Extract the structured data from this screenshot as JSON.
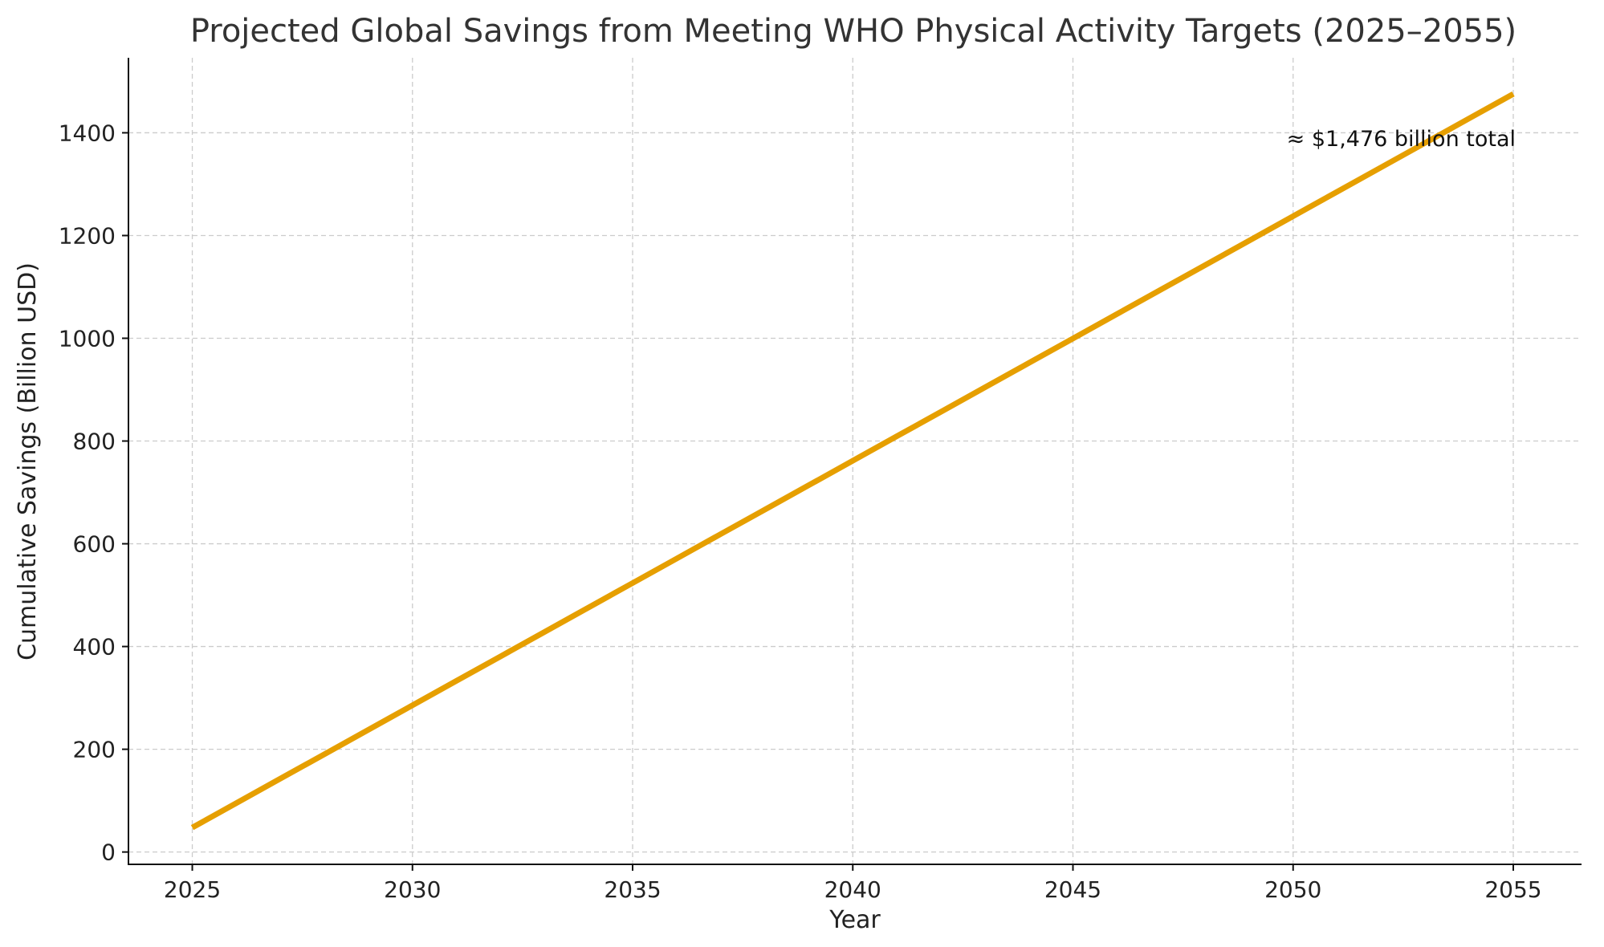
{
  "chart_data": {
    "type": "line",
    "title": "Projected Global Savings from Meeting WHO Physical Activity Targets (2025–2055)",
    "xlabel": "Year",
    "ylabel": "Cumulative Savings (Billion USD)",
    "xlim": [
      2023.55,
      2056.55
    ],
    "ylim": [
      -24,
      1546
    ],
    "xticks": [
      2025,
      2030,
      2035,
      2040,
      2045,
      2050,
      2055
    ],
    "yticks": [
      0,
      200,
      400,
      600,
      800,
      1000,
      1200,
      1400
    ],
    "grid": true,
    "line_color": "#E69F00",
    "series": [
      {
        "x": [
          2025,
          2026,
          2027,
          2028,
          2029,
          2030,
          2031,
          2032,
          2033,
          2034,
          2035,
          2036,
          2037,
          2038,
          2039,
          2040,
          2041,
          2042,
          2043,
          2044,
          2045,
          2046,
          2047,
          2048,
          2049,
          2050,
          2051,
          2052,
          2053,
          2054,
          2055
        ],
        "values": [
          47.6,
          95.2,
          142.8,
          190.4,
          238.0,
          285.6,
          333.2,
          380.8,
          428.4,
          476.0,
          523.6,
          571.2,
          618.8,
          666.4,
          714.0,
          761.6,
          809.2,
          856.8,
          904.4,
          952.0,
          999.6,
          1047.2,
          1094.8,
          1142.4,
          1190.0,
          1237.6,
          1285.2,
          1332.8,
          1380.4,
          1428.0,
          1475.6
        ]
      }
    ],
    "annotation": {
      "text": "≈ $1,476 billion total"
    }
  }
}
